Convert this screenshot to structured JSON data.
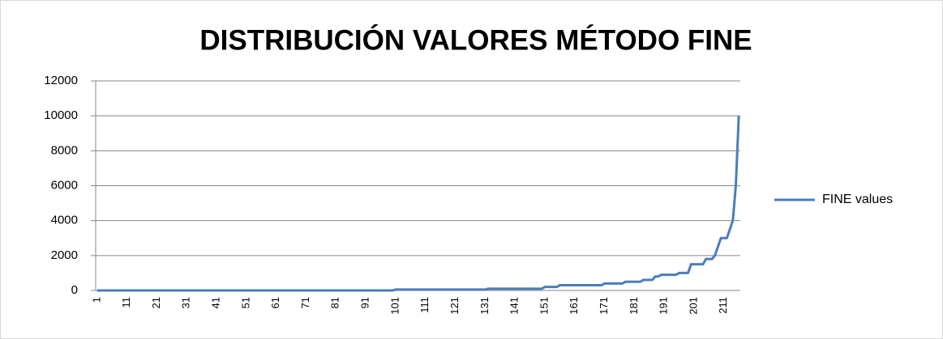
{
  "chart_data": {
    "type": "line",
    "title": "DISTRIBUCIÓN VALORES MÉTODO FINE",
    "categories": [
      "1",
      null,
      null,
      null,
      null,
      null,
      null,
      null,
      null,
      null,
      "11",
      null,
      null,
      null,
      null,
      null,
      null,
      null,
      null,
      null,
      "21",
      null,
      null,
      null,
      null,
      null,
      null,
      null,
      null,
      null,
      "31",
      null,
      null,
      null,
      null,
      null,
      null,
      null,
      null,
      null,
      "41",
      null,
      null,
      null,
      null,
      null,
      null,
      null,
      null,
      null,
      "51",
      null,
      null,
      null,
      null,
      null,
      null,
      null,
      null,
      null,
      "61",
      null,
      null,
      null,
      null,
      null,
      null,
      null,
      null,
      null,
      "71",
      null,
      null,
      null,
      null,
      null,
      null,
      null,
      null,
      null,
      "81",
      null,
      null,
      null,
      null,
      null,
      null,
      null,
      null,
      null,
      "91",
      null,
      null,
      null,
      null,
      null,
      null,
      null,
      null,
      null,
      "101",
      null,
      null,
      null,
      null,
      null,
      null,
      null,
      null,
      null,
      "111",
      null,
      null,
      null,
      null,
      null,
      null,
      null,
      null,
      null,
      "121",
      null,
      null,
      null,
      null,
      null,
      null,
      null,
      null,
      null,
      "131",
      null,
      null,
      null,
      null,
      null,
      null,
      null,
      null,
      null,
      "141",
      null,
      null,
      null,
      null,
      null,
      null,
      null,
      null,
      null,
      "151",
      null,
      null,
      null,
      null,
      null,
      null,
      null,
      null,
      null,
      "161",
      null,
      null,
      null,
      null,
      null,
      null,
      null,
      null,
      null,
      "171",
      null,
      null,
      null,
      null,
      null,
      null,
      null,
      null,
      null,
      "181",
      null,
      null,
      null,
      null,
      null,
      null,
      null,
      null,
      null,
      "191",
      null,
      null,
      null,
      null,
      null,
      null,
      null,
      null,
      null,
      "201",
      null,
      null,
      null,
      null,
      null,
      null,
      null,
      null,
      null,
      "211",
      null,
      null,
      null,
      null,
      null
    ],
    "series": [
      {
        "name": "FINE values",
        "color": "#4a7ebb",
        "values": [
          0,
          0,
          0,
          0,
          0,
          0,
          0,
          0,
          0,
          0,
          0,
          0,
          0,
          0,
          0,
          0,
          0,
          0,
          0,
          0,
          0,
          0,
          0,
          0,
          0,
          0,
          0,
          0,
          0,
          0,
          0,
          0,
          0,
          0,
          0,
          0,
          0,
          0,
          0,
          0,
          0,
          0,
          0,
          0,
          0,
          0,
          0,
          0,
          0,
          0,
          0,
          0,
          0,
          0,
          0,
          0,
          0,
          0,
          0,
          0,
          0,
          0,
          0,
          0,
          0,
          0,
          0,
          0,
          0,
          0,
          0,
          0,
          0,
          0,
          0,
          0,
          0,
          0,
          0,
          0,
          0,
          0,
          0,
          0,
          0,
          0,
          0,
          0,
          0,
          0,
          0,
          0,
          0,
          0,
          0,
          0,
          0,
          0,
          0,
          0,
          50,
          50,
          50,
          50,
          50,
          50,
          50,
          50,
          50,
          50,
          50,
          50,
          50,
          50,
          50,
          50,
          50,
          50,
          50,
          50,
          50,
          50,
          50,
          50,
          50,
          50,
          50,
          50,
          50,
          50,
          50,
          100,
          100,
          100,
          100,
          100,
          100,
          100,
          100,
          100,
          100,
          100,
          100,
          100,
          100,
          100,
          100,
          100,
          100,
          100,
          200,
          200,
          200,
          200,
          200,
          300,
          300,
          300,
          300,
          300,
          300,
          300,
          300,
          300,
          300,
          300,
          300,
          300,
          300,
          300,
          400,
          400,
          400,
          400,
          400,
          400,
          400,
          500,
          500,
          500,
          500,
          500,
          500,
          600,
          600,
          600,
          600,
          800,
          800,
          900,
          900,
          900,
          900,
          900,
          900,
          1000,
          1000,
          1000,
          1000,
          1500,
          1500,
          1500,
          1500,
          1500,
          1800,
          1800,
          1800,
          2000,
          2500,
          3000,
          3000,
          3000,
          3500,
          4000,
          6000,
          10000
        ]
      }
    ],
    "ylim": [
      0,
      12000
    ],
    "yticks": [
      0,
      2000,
      4000,
      6000,
      8000,
      10000,
      12000
    ],
    "grid": true,
    "legend": "right"
  }
}
